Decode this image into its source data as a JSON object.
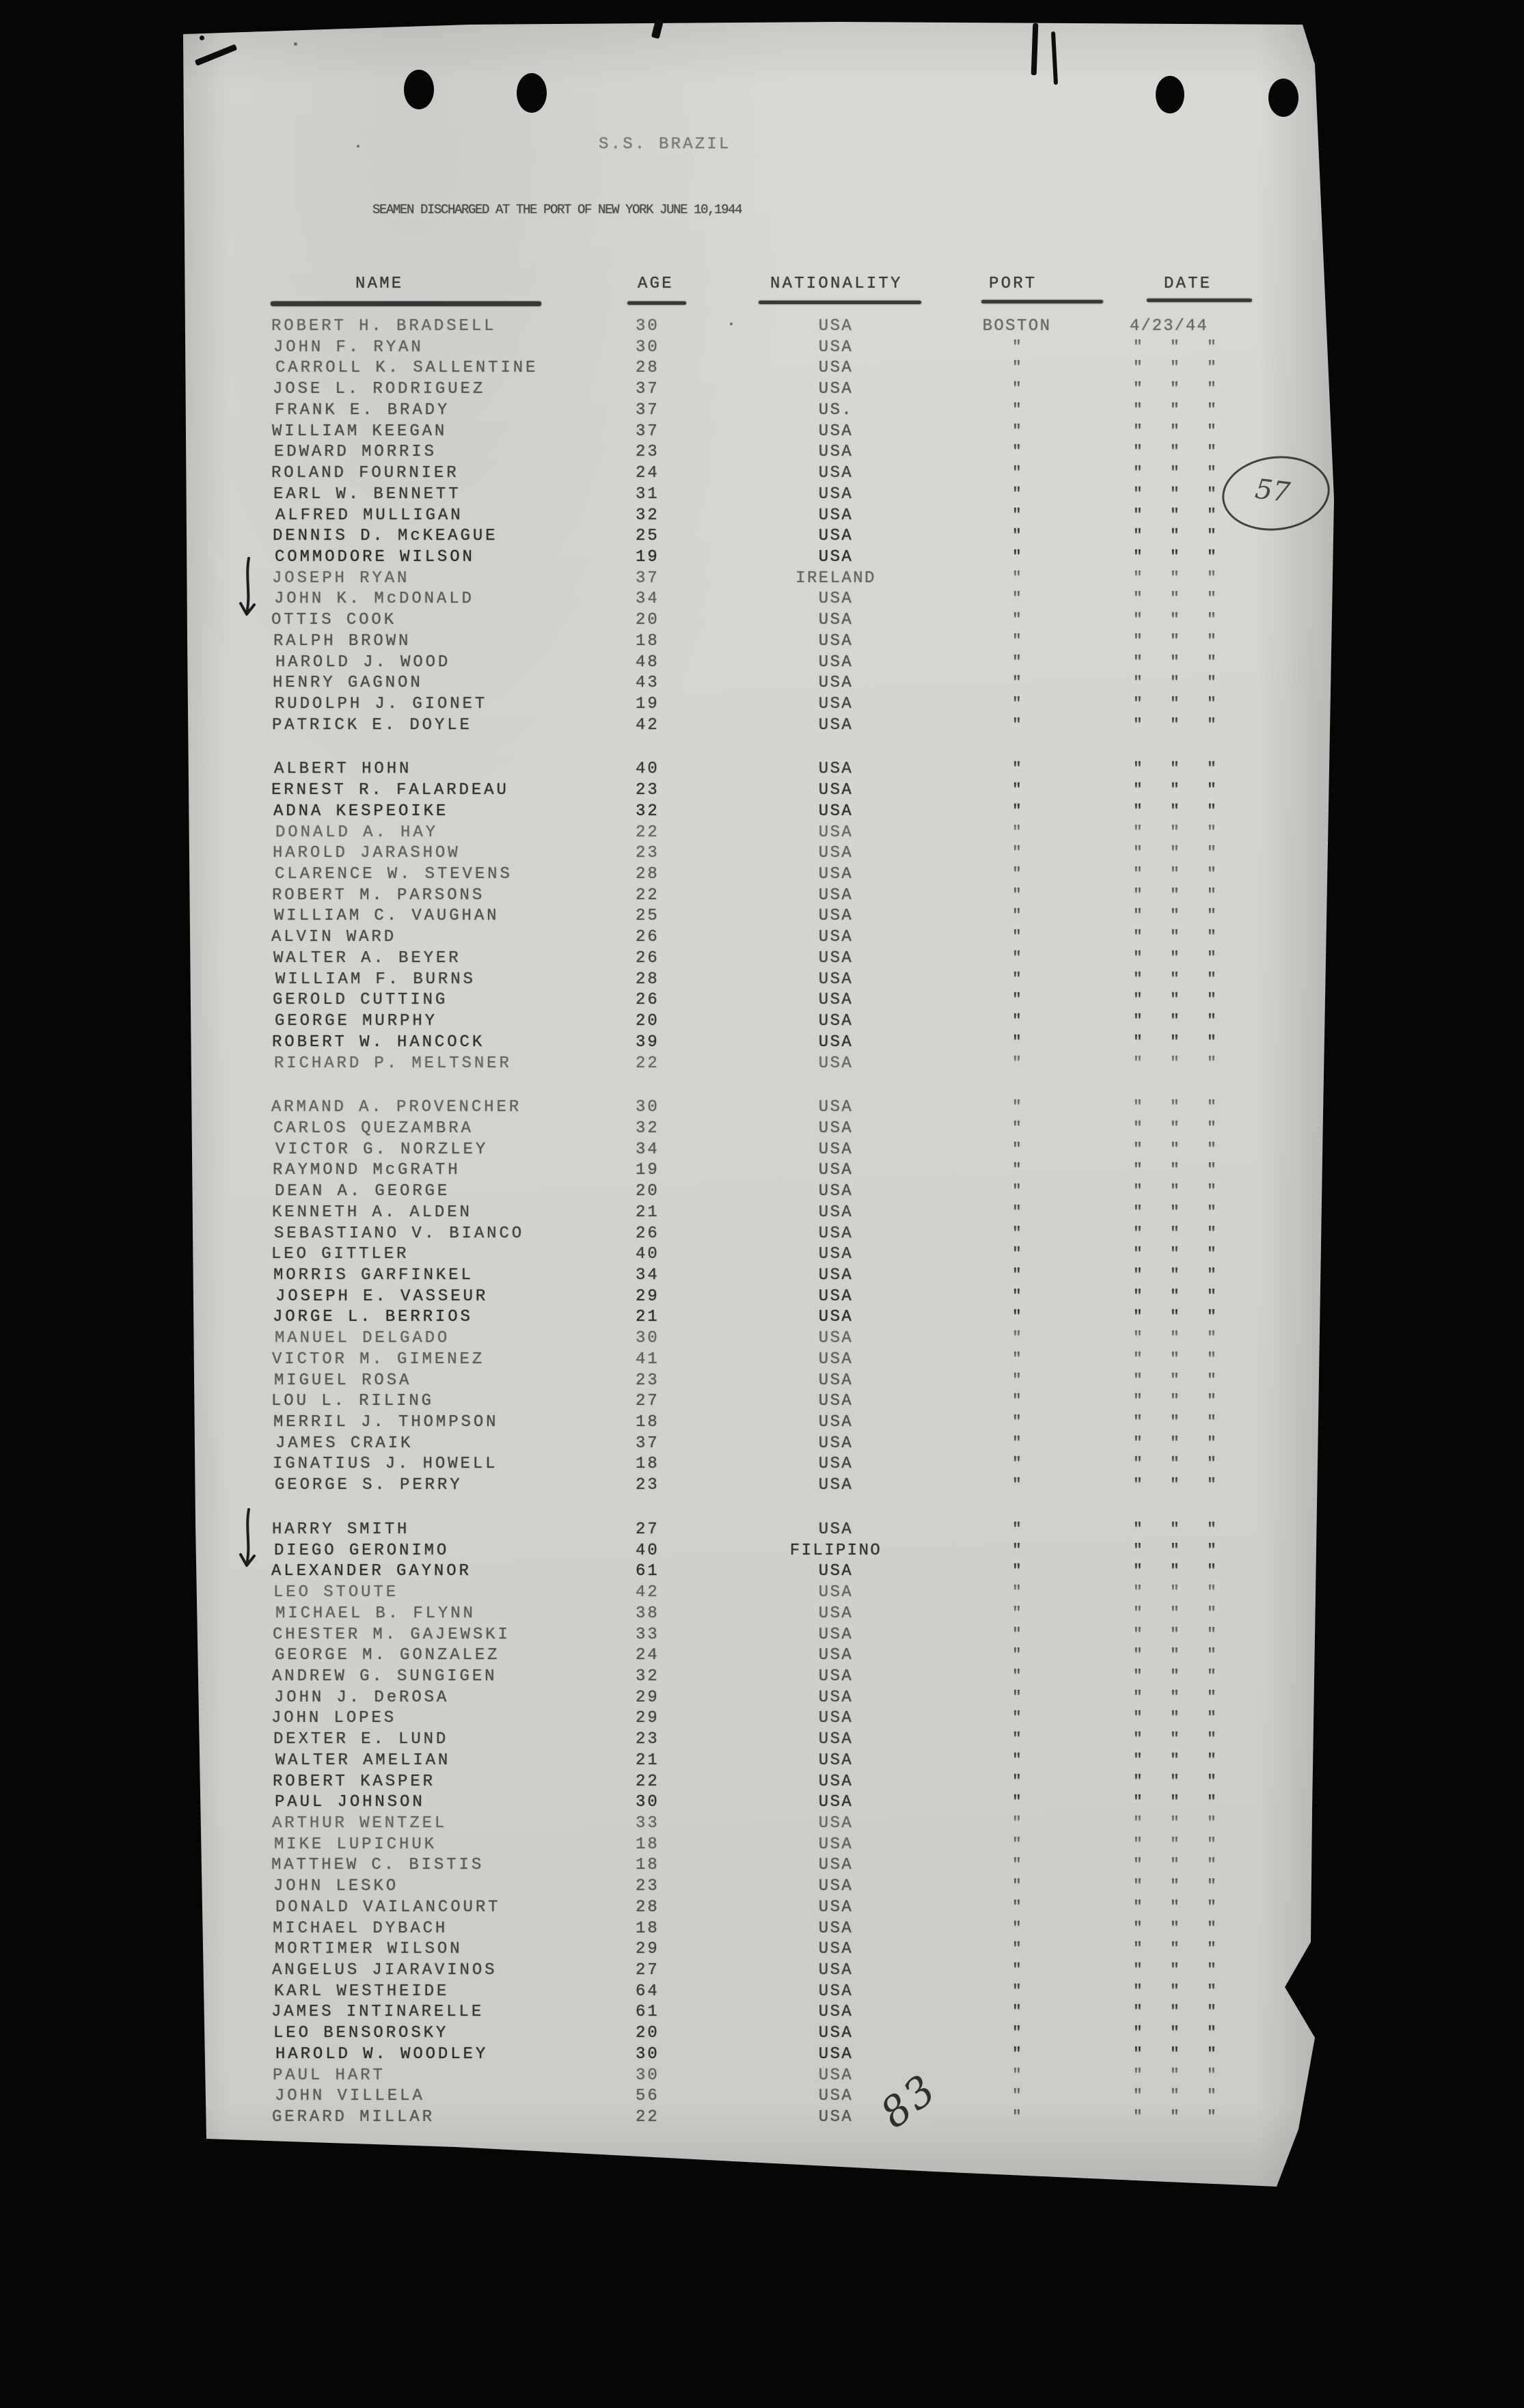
{
  "page": {
    "handwritten_count": "83",
    "handwritten_circled": "57"
  },
  "document": {
    "title": "S.S. BRAZIL",
    "subtitle": "SEAMEN DISCHARGED AT THE PORT OF NEW YORK JUNE 10,1944",
    "columns": {
      "name": "NAME",
      "age": "AGE",
      "nationality": "NATIONALITY",
      "port": "PORT",
      "date": "DATE"
    },
    "first_row_port": "BOSTON",
    "first_row_date": "4/23/44",
    "ditto": "\"",
    "groups": [
      {
        "rows": [
          {
            "name": "ROBERT H. BRADSELL",
            "age": "30",
            "nationality": "USA"
          },
          {
            "name": "JOHN F. RYAN",
            "age": "30",
            "nationality": "USA"
          },
          {
            "name": "CARROLL K. SALLENTINE",
            "age": "28",
            "nationality": "USA"
          },
          {
            "name": "JOSE L. RODRIGUEZ",
            "age": "37",
            "nationality": "USA"
          },
          {
            "name": "FRANK E. BRADY",
            "age": "37",
            "nationality": "US."
          },
          {
            "name": "WILLIAM KEEGAN",
            "age": "37",
            "nationality": "USA"
          },
          {
            "name": "EDWARD MORRIS",
            "age": "23",
            "nationality": "USA"
          },
          {
            "name": "ROLAND FOURNIER",
            "age": "24",
            "nationality": "USA"
          },
          {
            "name": "EARL W. BENNETT",
            "age": "31",
            "nationality": "USA"
          },
          {
            "name": "ALFRED MULLIGAN",
            "age": "32",
            "nationality": "USA"
          },
          {
            "name": "DENNIS D. McKEAGUE",
            "age": "25",
            "nationality": "USA"
          },
          {
            "name": "COMMODORE WILSON",
            "age": "19",
            "nationality": "USA"
          },
          {
            "name": "JOSEPH RYAN",
            "age": "37",
            "nationality": "IRELAND",
            "mark": "arrow"
          },
          {
            "name": "JOHN K. McDONALD",
            "age": "34",
            "nationality": "USA"
          },
          {
            "name": "OTTIS COOK",
            "age": "20",
            "nationality": "USA"
          },
          {
            "name": "RALPH BROWN",
            "age": "18",
            "nationality": "USA"
          },
          {
            "name": "HAROLD J. WOOD",
            "age": "48",
            "nationality": "USA"
          },
          {
            "name": "HENRY GAGNON",
            "age": "43",
            "nationality": "USA"
          },
          {
            "name": "RUDOLPH J. GIONET",
            "age": "19",
            "nationality": "USA"
          },
          {
            "name": "PATRICK E. DOYLE",
            "age": "42",
            "nationality": "USA"
          }
        ]
      },
      {
        "rows": [
          {
            "name": "ALBERT HOHN",
            "age": "40",
            "nationality": "USA"
          },
          {
            "name": "ERNEST R. FALARDEAU",
            "age": "23",
            "nationality": "USA"
          },
          {
            "name": "ADNA KESPEOIKE",
            "age": "32",
            "nationality": "USA"
          },
          {
            "name": "DONALD A. HAY",
            "age": "22",
            "nationality": "USA"
          },
          {
            "name": "HAROLD JARASHOW",
            "age": "23",
            "nationality": "USA"
          },
          {
            "name": "CLARENCE W. STEVENS",
            "age": "28",
            "nationality": "USA"
          },
          {
            "name": "ROBERT M. PARSONS",
            "age": "22",
            "nationality": "USA"
          },
          {
            "name": "WILLIAM C. VAUGHAN",
            "age": "25",
            "nationality": "USA"
          },
          {
            "name": "ALVIN WARD",
            "age": "26",
            "nationality": "USA"
          },
          {
            "name": "WALTER A. BEYER",
            "age": "26",
            "nationality": "USA"
          },
          {
            "name": "WILLIAM F. BURNS",
            "age": "28",
            "nationality": "USA"
          },
          {
            "name": "GEROLD CUTTING",
            "age": "26",
            "nationality": "USA"
          },
          {
            "name": "GEORGE MURPHY",
            "age": "20",
            "nationality": "USA"
          },
          {
            "name": "ROBERT W. HANCOCK",
            "age": "39",
            "nationality": "USA"
          },
          {
            "name": "RICHARD P. MELTSNER",
            "age": "22",
            "nationality": "USA"
          }
        ]
      },
      {
        "rows": [
          {
            "name": "ARMAND A. PROVENCHER",
            "age": "30",
            "nationality": "USA"
          },
          {
            "name": "CARLOS QUEZAMBRA",
            "age": "32",
            "nationality": "USA"
          },
          {
            "name": "VICTOR G. NORZLEY",
            "age": "34",
            "nationality": "USA"
          },
          {
            "name": "RAYMOND McGRATH",
            "age": "19",
            "nationality": "USA"
          },
          {
            "name": "DEAN A. GEORGE",
            "age": "20",
            "nationality": "USA"
          },
          {
            "name": "KENNETH A. ALDEN",
            "age": "21",
            "nationality": "USA"
          },
          {
            "name": "SEBASTIANO V. BIANCO",
            "age": "26",
            "nationality": "USA"
          },
          {
            "name": "LEO GITTLER",
            "age": "40",
            "nationality": "USA"
          },
          {
            "name": "MORRIS GARFINKEL",
            "age": "34",
            "nationality": "USA"
          },
          {
            "name": "JOSEPH E. VASSEUR",
            "age": "29",
            "nationality": "USA"
          },
          {
            "name": "JORGE L. BERRIOS",
            "age": "21",
            "nationality": "USA"
          },
          {
            "name": "MANUEL DELGADO",
            "age": "30",
            "nationality": "USA"
          },
          {
            "name": "VICTOR M. GIMENEZ",
            "age": "41",
            "nationality": "USA"
          },
          {
            "name": "MIGUEL ROSA",
            "age": "23",
            "nationality": "USA"
          },
          {
            "name": "LOU L. RILING",
            "age": "27",
            "nationality": "USA"
          },
          {
            "name": "MERRIL J. THOMPSON",
            "age": "18",
            "nationality": "USA"
          },
          {
            "name": "JAMES CRAIK",
            "age": "37",
            "nationality": "USA"
          },
          {
            "name": "IGNATIUS J. HOWELL",
            "age": "18",
            "nationality": "USA"
          },
          {
            "name": "GEORGE S. PERRY",
            "age": "23",
            "nationality": "USA"
          }
        ]
      },
      {
        "rows": [
          {
            "name": "HARRY SMITH",
            "age": "27",
            "nationality": "USA",
            "mark": "arrow"
          },
          {
            "name": "DIEGO GERONIMO",
            "age": "40",
            "nationality": "FILIPINO"
          },
          {
            "name": "ALEXANDER GAYNOR",
            "age": "61",
            "nationality": "USA"
          },
          {
            "name": "LEO STOUTE",
            "age": "42",
            "nationality": "USA"
          },
          {
            "name": "MICHAEL B. FLYNN",
            "age": "38",
            "nationality": "USA"
          },
          {
            "name": "CHESTER M. GAJEWSKI",
            "age": "33",
            "nationality": "USA"
          },
          {
            "name": "GEORGE M. GONZALEZ",
            "age": "24",
            "nationality": "USA"
          },
          {
            "name": "ANDREW G. SUNGIGEN",
            "age": "32",
            "nationality": "USA"
          },
          {
            "name": "JOHN J. DeROSA",
            "age": "29",
            "nationality": "USA"
          },
          {
            "name": "JOHN LOPES",
            "age": "29",
            "nationality": "USA"
          },
          {
            "name": "DEXTER E. LUND",
            "age": "23",
            "nationality": "USA"
          },
          {
            "name": "WALTER AMELIAN",
            "age": "21",
            "nationality": "USA"
          },
          {
            "name": "ROBERT KASPER",
            "age": "22",
            "nationality": "USA"
          },
          {
            "name": "PAUL JOHNSON",
            "age": "30",
            "nationality": "USA"
          },
          {
            "name": "ARTHUR WENTZEL",
            "age": "33",
            "nationality": "USA"
          },
          {
            "name": "MIKE LUPICHUK",
            "age": "18",
            "nationality": "USA"
          },
          {
            "name": "MATTHEW C. BISTIS",
            "age": "18",
            "nationality": "USA"
          },
          {
            "name": "JOHN LESKO",
            "age": "23",
            "nationality": "USA"
          },
          {
            "name": "DONALD VAILANCOURT",
            "age": "28",
            "nationality": "USA"
          },
          {
            "name": "MICHAEL DYBACH",
            "age": "18",
            "nationality": "USA"
          },
          {
            "name": "MORTIMER WILSON",
            "age": "29",
            "nationality": "USA"
          },
          {
            "name": "ANGELUS JIARAVINOS",
            "age": "27",
            "nationality": "USA"
          },
          {
            "name": "KARL WESTHEIDE",
            "age": "64",
            "nationality": "USA"
          },
          {
            "name": "JAMES INTINARELLE",
            "age": "61",
            "nationality": "USA"
          },
          {
            "name": "LEO BENSOROSKY",
            "age": "20",
            "nationality": "USA"
          },
          {
            "name": "HAROLD W. WOODLEY",
            "age": "30",
            "nationality": "USA"
          },
          {
            "name": "PAUL HART",
            "age": "30",
            "nationality": "USA"
          },
          {
            "name": "JOHN VILLELA",
            "age": "56",
            "nationality": "USA"
          },
          {
            "name": "GERARD MILLAR",
            "age": "22",
            "nationality": "USA"
          }
        ]
      }
    ]
  }
}
